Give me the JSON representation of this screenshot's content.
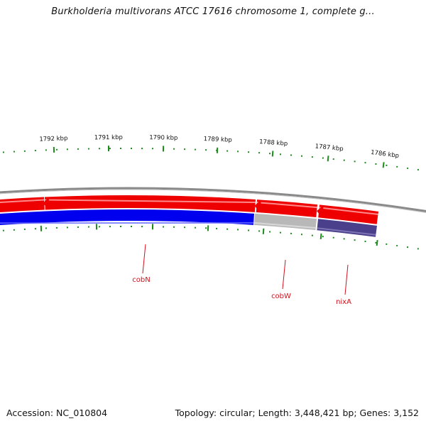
{
  "title": "Burkholderia multivorans ATCC 17616 chromosome 1, complete g...",
  "footer": {
    "accession": "Accession: NC_010804",
    "summary": "Topology: circular; Length: 3,448,421 bp; Genes: 3,152"
  },
  "scale": {
    "unit": "kbp",
    "labels": [
      "1792 kbp",
      "1791 kbp",
      "1790 kbp",
      "1789 kbp",
      "1788 kbp",
      "1787 kbp",
      "1786 kbp"
    ],
    "tick_color": "#1e8a1e"
  },
  "genes": {
    "labels": [
      "cobN",
      "cobW",
      "nixA"
    ],
    "label_color": "#d0101c"
  },
  "colors": {
    "backbone": "#8a8a8a",
    "forward_track": "#ee0000",
    "reverse_track": "#0000ee",
    "cobW_gene": "#b8b8b8",
    "nixA_gene": "#4a3f8a"
  }
}
